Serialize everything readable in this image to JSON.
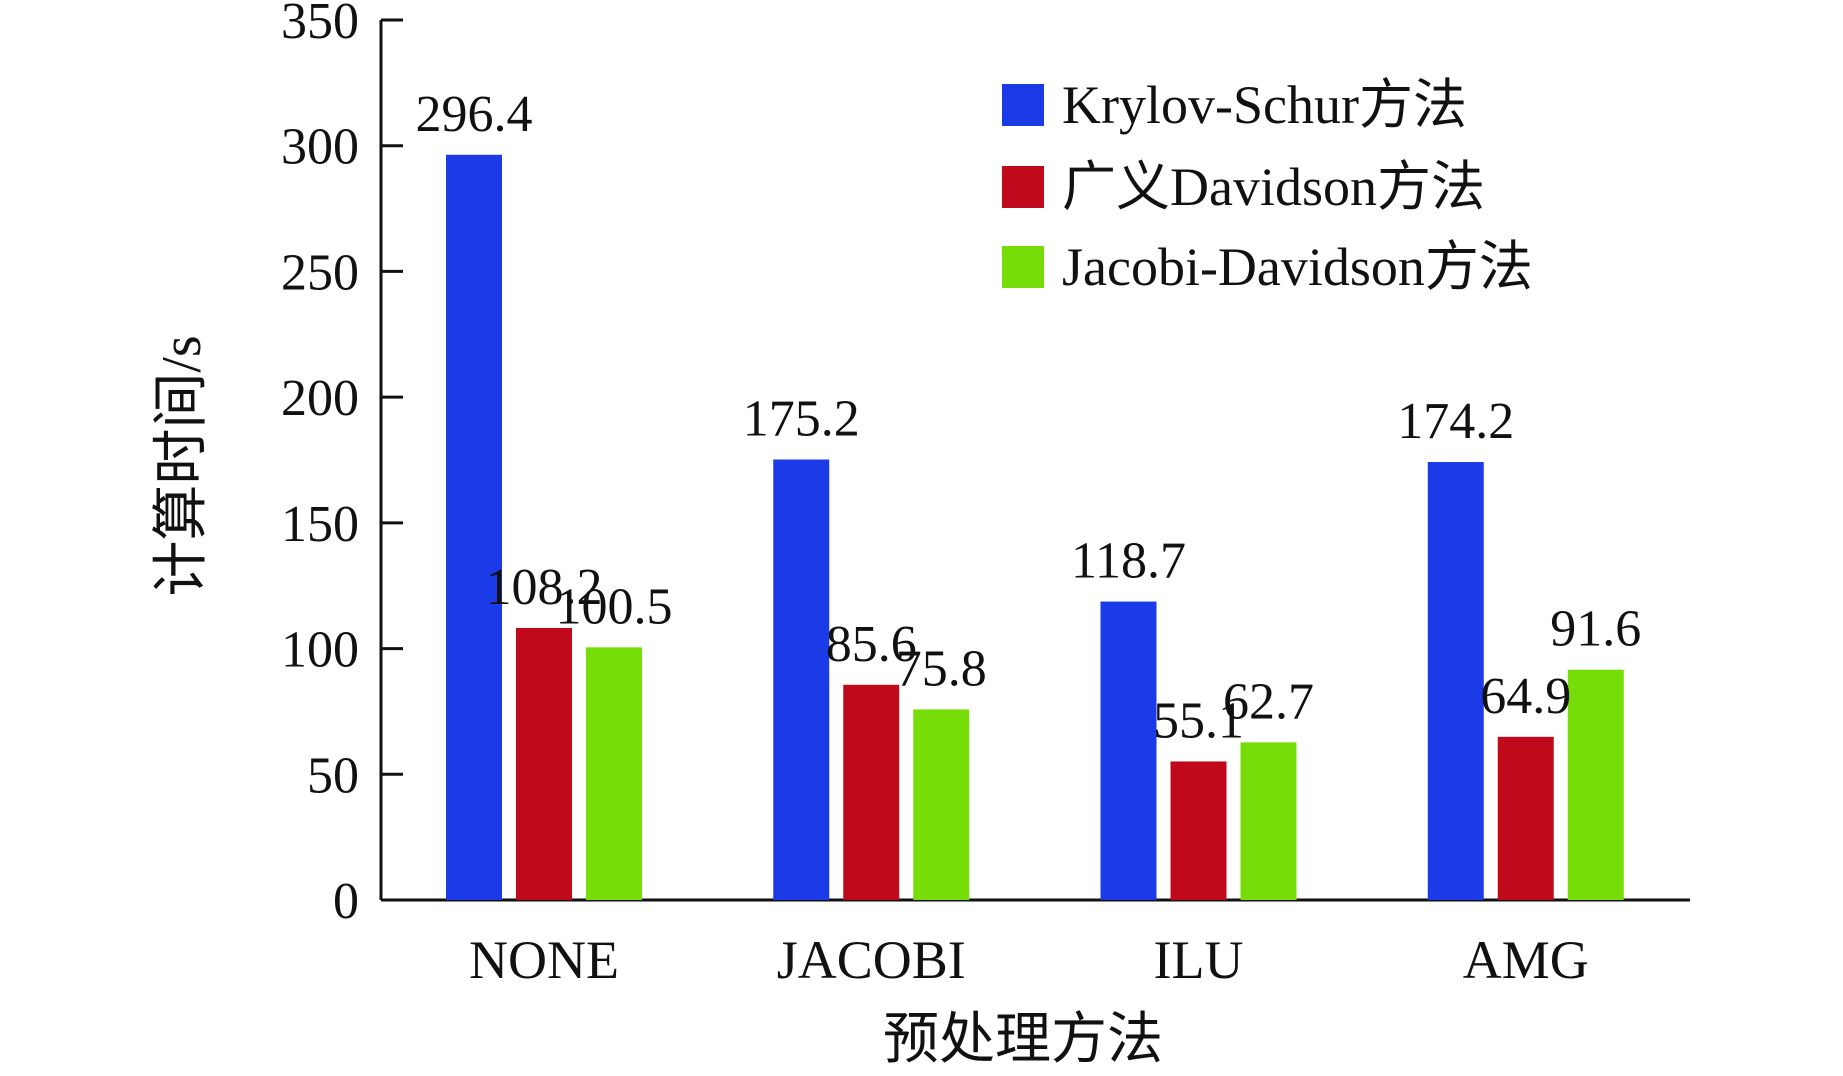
{
  "chart_data": {
    "type": "bar",
    "title": "",
    "xlabel": "预处理方法",
    "ylabel": "计算时间/s",
    "categories": [
      "NONE",
      "JACOBI",
      "ILU",
      "AMG"
    ],
    "ylim": [
      0,
      350
    ],
    "yticks": [
      0,
      50,
      100,
      150,
      200,
      250,
      300,
      350
    ],
    "series": [
      {
        "name": "Krylov-Schur方法",
        "color": "#1b3be8",
        "values": [
          296.4,
          175.2,
          118.7,
          174.2
        ]
      },
      {
        "name": "广义Davidson方法",
        "color": "#c00a1c",
        "values": [
          108.2,
          85.6,
          55.1,
          64.9
        ]
      },
      {
        "name": "Jacobi-Davidson方法",
        "color": "#77dd08",
        "values": [
          100.5,
          75.8,
          62.7,
          91.6
        ]
      }
    ],
    "legend_position": "top-right",
    "grid": false
  }
}
